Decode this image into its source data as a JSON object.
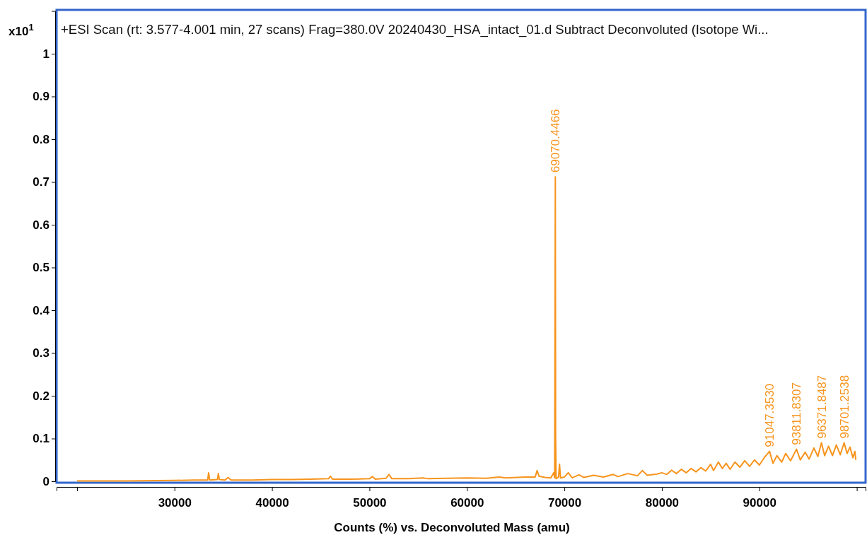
{
  "chart_data": {
    "type": "line",
    "title": "+ESI Scan (rt: 3.577-4.001 min, 27 scans) Frag=380.0V 20240430_HSA_intact_01.d  Subtract Deconvoluted (Isotope Wi...",
    "xlabel": "Counts (%) vs. Deconvoluted Mass (amu)",
    "ylabel": "x10$^{1}$",
    "xlim": [
      17900,
      100900
    ],
    "xticks": [
      {
        "value": 20000,
        "label": null
      },
      30000,
      40000,
      50000,
      60000,
      70000,
      80000,
      90000,
      {
        "value": 100000,
        "label": null
      }
    ],
    "ylim": [
      0,
      1.1
    ],
    "yticks": [
      0,
      0.1,
      0.2,
      0.3,
      0.4,
      0.5,
      0.6,
      0.7,
      0.8,
      0.9,
      1
    ],
    "grid": false,
    "marker": "none",
    "line_style": "solid",
    "series": [
      {
        "color": "#f7941d",
        "x": [
          20000,
          25000,
          30000,
          32000,
          33400,
          33500,
          33600,
          34400,
          34500,
          34600,
          35200,
          35500,
          35800,
          38000,
          40000,
          42000,
          44000,
          45800,
          46000,
          46200,
          48000,
          50000,
          50300,
          50600,
          51700,
          52000,
          52300,
          54000,
          55500,
          56000,
          58000,
          60000,
          62000,
          63300,
          64000,
          66000,
          67000,
          67200,
          67400,
          68000,
          68600,
          68900,
          69000,
          69070,
          69100,
          69150,
          69400,
          69500,
          69600,
          70000,
          70400,
          70800,
          71500,
          72000,
          73000,
          74000,
          75000,
          75500,
          76500,
          77500,
          78000,
          78500,
          79500,
          80000,
          80500,
          81000,
          81500,
          82000,
          82500,
          83000,
          83500,
          84000,
          84500,
          85000,
          85300,
          85800,
          86200,
          86600,
          87000,
          87500,
          88000,
          88500,
          89000,
          89500,
          90000,
          90500,
          91047,
          91400,
          91800,
          92300,
          92700,
          93200,
          93811,
          94200,
          94700,
          95100,
          95600,
          96000,
          96371,
          96700,
          97100,
          97500,
          97900,
          98300,
          98701,
          99000,
          99300,
          99600,
          99800,
          99900
        ],
        "values": [
          0.001,
          0.001,
          0.002,
          0.003,
          0.003,
          0.02,
          0.003,
          0.004,
          0.018,
          0.004,
          0.003,
          0.009,
          0.003,
          0.003,
          0.004,
          0.004,
          0.005,
          0.006,
          0.012,
          0.005,
          0.005,
          0.006,
          0.011,
          0.005,
          0.007,
          0.016,
          0.006,
          0.006,
          0.008,
          0.006,
          0.007,
          0.008,
          0.007,
          0.01,
          0.008,
          0.01,
          0.01,
          0.025,
          0.012,
          0.009,
          0.008,
          0.02,
          0.008,
          0.712,
          0.1,
          0.006,
          0.01,
          0.04,
          0.008,
          0.01,
          0.02,
          0.008,
          0.015,
          0.009,
          0.014,
          0.01,
          0.016,
          0.011,
          0.018,
          0.013,
          0.025,
          0.014,
          0.017,
          0.02,
          0.016,
          0.026,
          0.018,
          0.028,
          0.02,
          0.03,
          0.022,
          0.032,
          0.024,
          0.04,
          0.025,
          0.045,
          0.03,
          0.042,
          0.028,
          0.045,
          0.033,
          0.048,
          0.035,
          0.05,
          0.038,
          0.055,
          0.07,
          0.042,
          0.06,
          0.045,
          0.065,
          0.048,
          0.075,
          0.05,
          0.068,
          0.052,
          0.078,
          0.058,
          0.09,
          0.06,
          0.082,
          0.06,
          0.085,
          0.062,
          0.09,
          0.065,
          0.08,
          0.055,
          0.07,
          0.05
        ]
      }
    ],
    "annotations": [
      {
        "text": "69070.4466",
        "x": 69070,
        "y": 0.712
      },
      {
        "text": "91047.3530",
        "x": 91047,
        "y": 0.07
      },
      {
        "text": "93811.8307",
        "x": 93811,
        "y": 0.075
      },
      {
        "text": "96371.8487",
        "x": 96371,
        "y": 0.09
      },
      {
        "text": "98701.2538",
        "x": 98701,
        "y": 0.09
      }
    ]
  }
}
